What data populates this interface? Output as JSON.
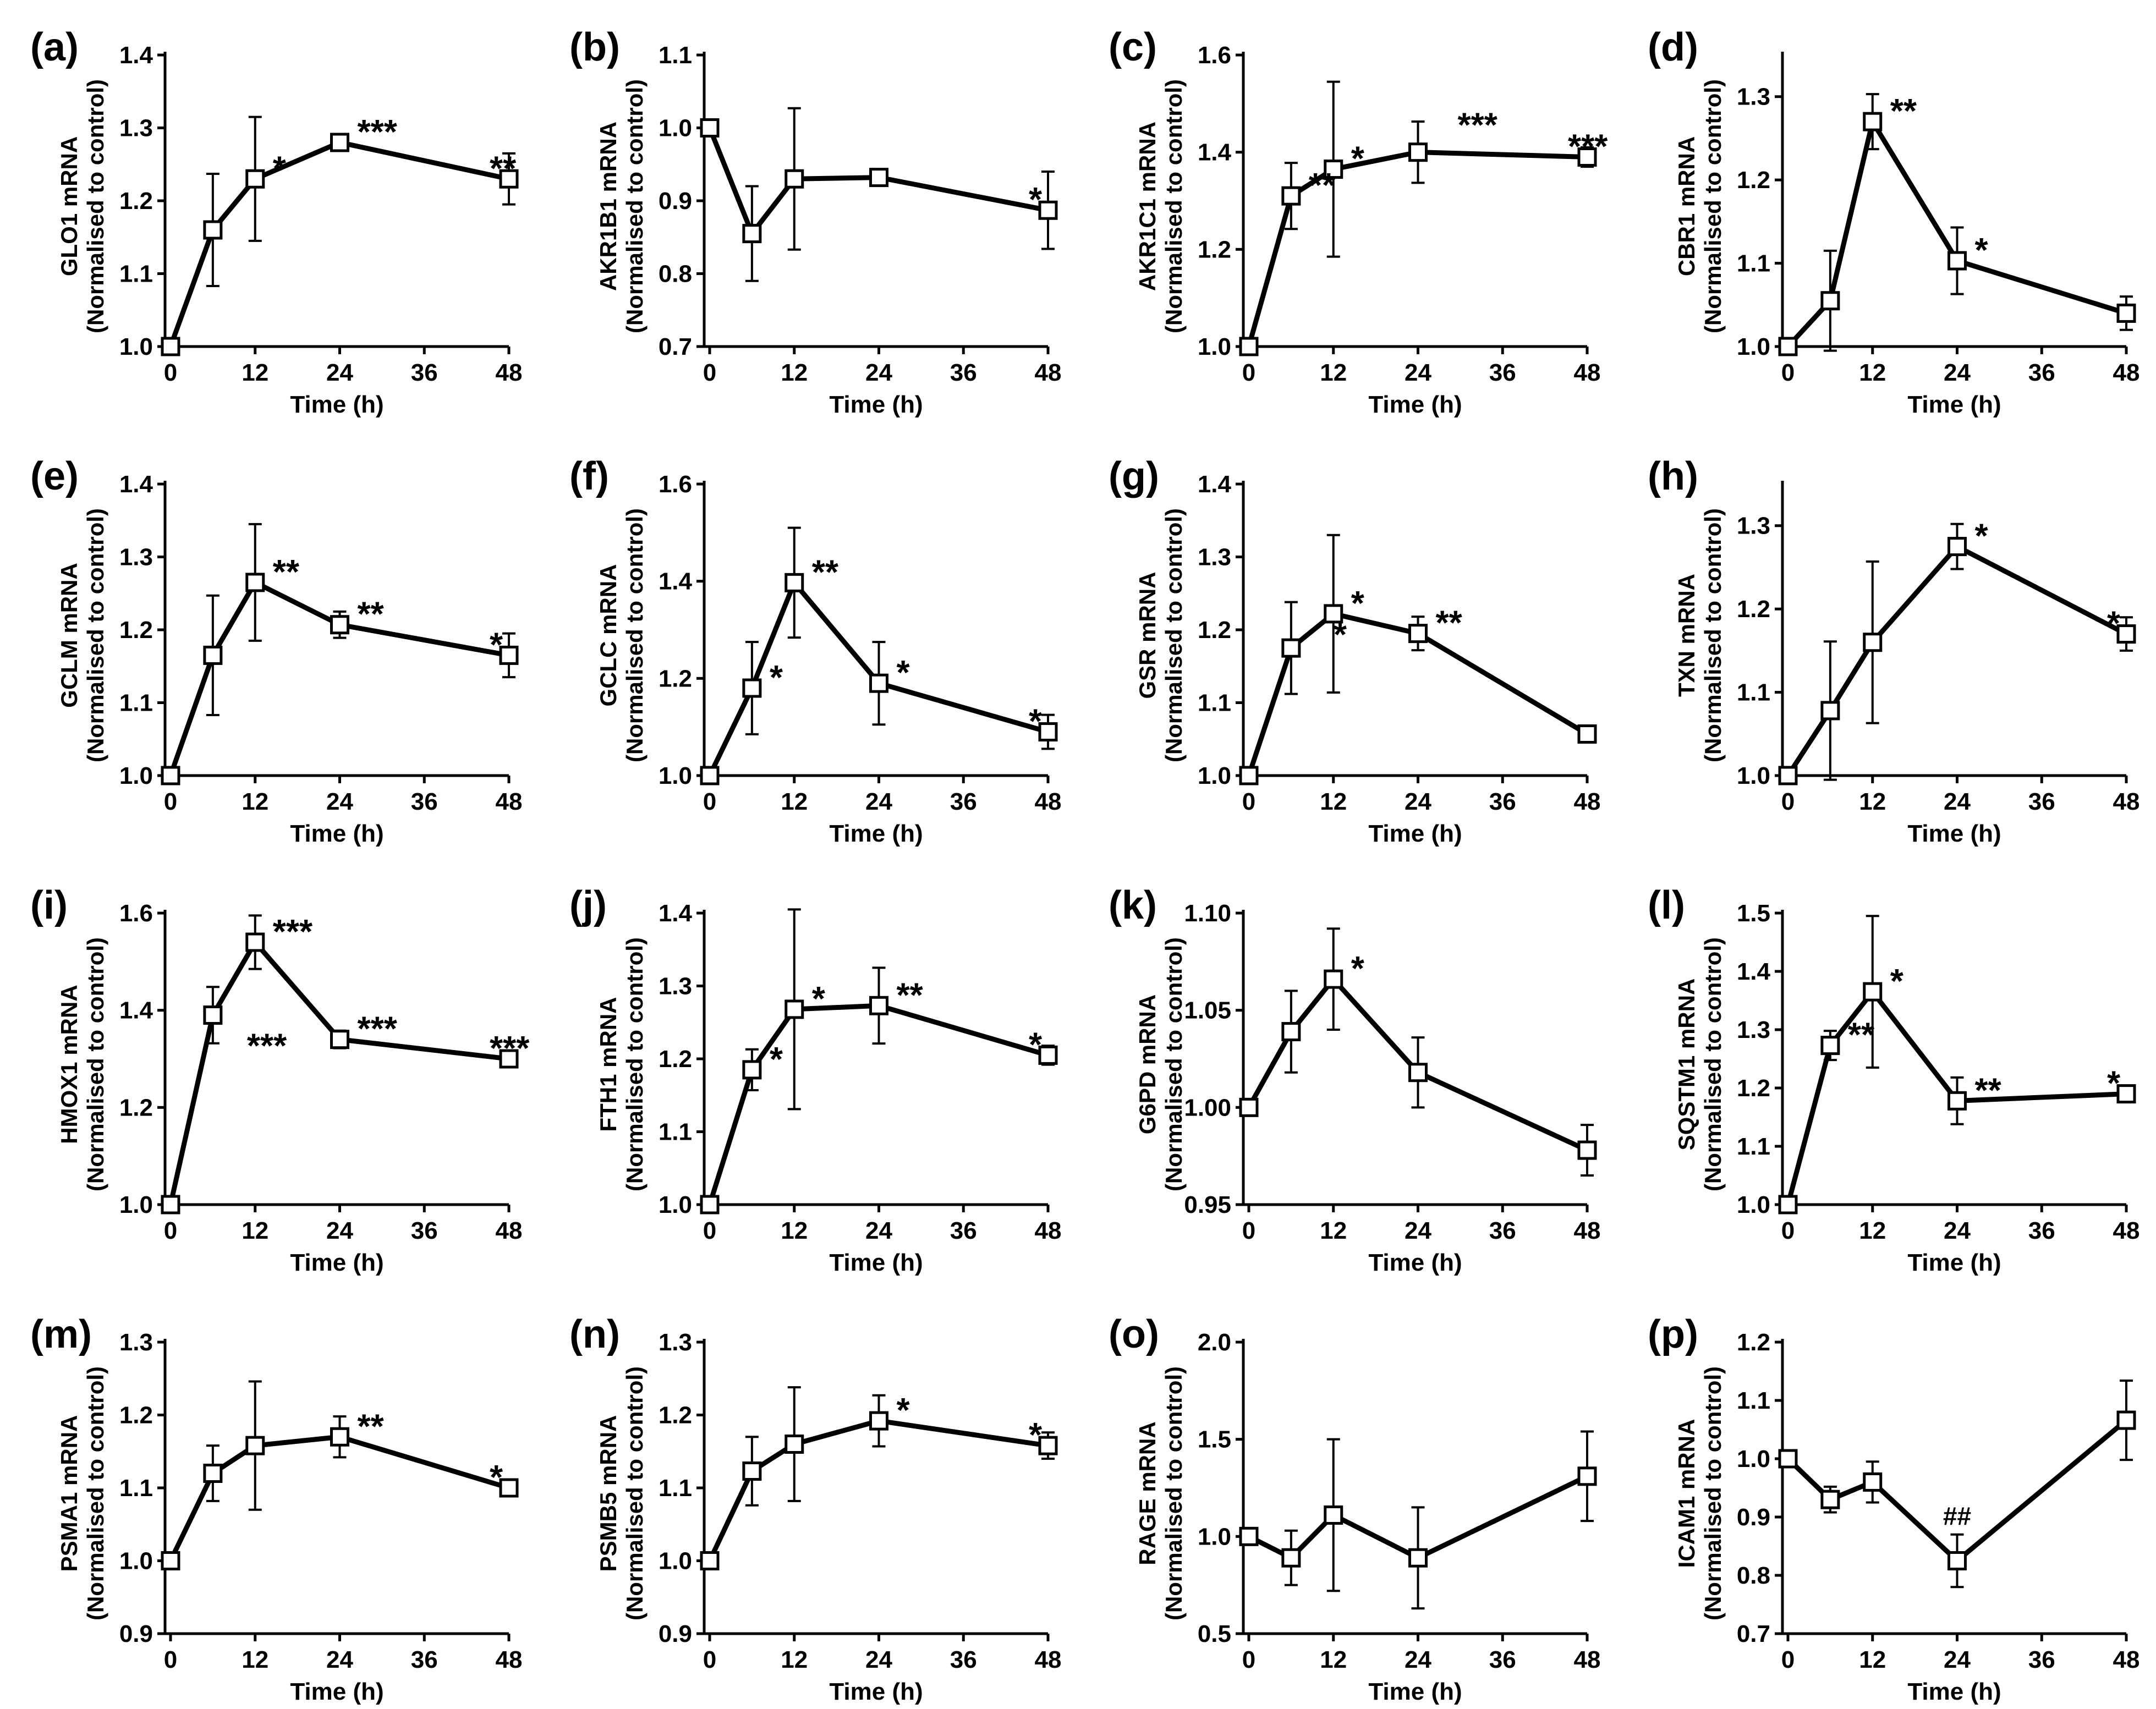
{
  "chart_data": [
    {
      "type": "line",
      "label": "(a)",
      "ylabel": "GLO1 mRNA",
      "ylabel2": "(Normalised to control)",
      "xlabel": "Time (h)",
      "ylim": [
        1.0,
        1.4
      ],
      "yticks": [
        "1.0",
        "1.1",
        "1.2",
        "1.3",
        "1.4"
      ],
      "xticks": [
        0,
        12,
        24,
        36,
        48
      ],
      "x": [
        0,
        6,
        12,
        24,
        48
      ],
      "y": [
        1.0,
        1.16,
        1.23,
        1.28,
        1.23
      ],
      "err": [
        0,
        0.077,
        0.085,
        0.008,
        0.035
      ],
      "sig": [
        "",
        "",
        "*",
        "***",
        "**"
      ]
    },
    {
      "type": "line",
      "label": "(b)",
      "ylabel": "AKR1B1 mRNA",
      "ylabel2": "(Normalised to control)",
      "xlabel": "Time (h)",
      "ylim": [
        0.7,
        1.1
      ],
      "yticks": [
        "0.7",
        "0.8",
        "0.9",
        "1.0",
        "1.1"
      ],
      "xticks": [
        0,
        12,
        24,
        36,
        48
      ],
      "x": [
        0,
        6,
        12,
        24,
        48
      ],
      "y": [
        1.0,
        0.855,
        0.93,
        0.932,
        0.887
      ],
      "err": [
        0,
        0.065,
        0.097,
        0.007,
        0.053
      ],
      "sig": [
        "",
        "",
        "",
        "",
        "*"
      ]
    },
    {
      "type": "line",
      "label": "(c)",
      "ylabel": "AKR1C1 mRNA",
      "ylabel2": "(Normalised to control)",
      "xlabel": "Time (h)",
      "ylim": [
        1.0,
        1.6
      ],
      "yticks": [
        "1.0",
        "1.2",
        "1.4",
        "1.6"
      ],
      "xticks": [
        0,
        12,
        24,
        36,
        48
      ],
      "x": [
        0,
        6,
        12,
        24,
        48
      ],
      "y": [
        1.0,
        1.31,
        1.365,
        1.4,
        1.39
      ],
      "err": [
        0,
        0.068,
        0.18,
        0.063,
        0.02
      ],
      "sig": [
        "",
        "**",
        "*",
        "***",
        "***"
      ]
    },
    {
      "type": "line",
      "label": "(d)",
      "ylabel": "CBR1 mRNA",
      "ylabel2": "(Normalised to control)",
      "xlabel": "Time (h)",
      "ylim": [
        1.0,
        1.35
      ],
      "yticks": [
        "1.0",
        "1.1",
        "1.2",
        "1.3"
      ],
      "xticks": [
        0,
        12,
        24,
        36,
        48
      ],
      "x": [
        0,
        6,
        12,
        24,
        48
      ],
      "y": [
        1.0,
        1.055,
        1.27,
        1.103,
        1.04
      ],
      "err": [
        0,
        0.06,
        0.033,
        0.04,
        0.02
      ],
      "sig": [
        "",
        "",
        "**",
        "*",
        ""
      ]
    },
    {
      "type": "line",
      "label": "(e)",
      "ylabel": "GCLM mRNA",
      "ylabel2": "(Normalised to control)",
      "xlabel": "Time (h)",
      "ylim": [
        1.0,
        1.4
      ],
      "yticks": [
        "1.0",
        "1.1",
        "1.2",
        "1.3",
        "1.4"
      ],
      "xticks": [
        0,
        12,
        24,
        36,
        48
      ],
      "x": [
        0,
        6,
        12,
        24,
        48
      ],
      "y": [
        1.0,
        1.165,
        1.265,
        1.207,
        1.165
      ],
      "err": [
        0,
        0.082,
        0.08,
        0.018,
        0.03
      ],
      "sig": [
        "",
        "",
        "**",
        "**",
        "*"
      ]
    },
    {
      "type": "line",
      "label": "(f)",
      "ylabel": "GCLC mRNA",
      "ylabel2": "(Normalised to control)",
      "xlabel": "Time (h)",
      "ylim": [
        1.0,
        1.6
      ],
      "yticks": [
        "1.0",
        "1.2",
        "1.4",
        "1.6"
      ],
      "xticks": [
        0,
        12,
        24,
        36,
        48
      ],
      "x": [
        0,
        6,
        12,
        24,
        48
      ],
      "y": [
        1.0,
        1.18,
        1.397,
        1.19,
        1.09
      ],
      "err": [
        0,
        0.095,
        0.113,
        0.085,
        0.035
      ],
      "sig": [
        "",
        "*",
        "**",
        "*",
        "*"
      ]
    },
    {
      "type": "line",
      "label": "(g)",
      "ylabel": "GSR mRNA",
      "ylabel2": "(Normalised to control)",
      "xlabel": "Time (h)",
      "ylim": [
        1.0,
        1.4
      ],
      "yticks": [
        "1.0",
        "1.1",
        "1.2",
        "1.3",
        "1.4"
      ],
      "xticks": [
        0,
        12,
        24,
        36,
        48
      ],
      "x": [
        0,
        6,
        12,
        24,
        48
      ],
      "y": [
        1.0,
        1.175,
        1.222,
        1.195,
        1.057
      ],
      "err": [
        0,
        0.063,
        0.108,
        0.023,
        0.005
      ],
      "sig": [
        "",
        "*",
        "*",
        "**",
        ""
      ]
    },
    {
      "type": "line",
      "label": "(h)",
      "ylabel": "TXN mRNA",
      "ylabel2": "(Normalised to control)",
      "xlabel": "Time (h)",
      "ylim": [
        1.0,
        1.35
      ],
      "yticks": [
        "1.0",
        "1.1",
        "1.2",
        "1.3"
      ],
      "xticks": [
        0,
        12,
        24,
        36,
        48
      ],
      "x": [
        0,
        6,
        12,
        24,
        48
      ],
      "y": [
        1.0,
        1.078,
        1.16,
        1.275,
        1.17
      ],
      "err": [
        0,
        0.083,
        0.097,
        0.027,
        0.02
      ],
      "sig": [
        "",
        "",
        "",
        "*",
        "*"
      ]
    },
    {
      "type": "line",
      "label": "(i)",
      "ylabel": "HMOX1 mRNA",
      "ylabel2": "(Normalised to control)",
      "xlabel": "Time (h)",
      "ylim": [
        1.0,
        1.6
      ],
      "yticks": [
        "1.0",
        "1.2",
        "1.4",
        "1.6"
      ],
      "xticks": [
        0,
        12,
        24,
        36,
        48
      ],
      "x": [
        0,
        6,
        12,
        24,
        48
      ],
      "y": [
        1.0,
        1.39,
        1.54,
        1.34,
        1.3
      ],
      "err": [
        0,
        0.058,
        0.055,
        0.018,
        0.01
      ],
      "sig": [
        "",
        "***",
        "***",
        "***",
        "***"
      ]
    },
    {
      "type": "line",
      "label": "(j)",
      "ylabel": "FTH1 mRNA",
      "ylabel2": "(Normalised to control)",
      "xlabel": "Time (h)",
      "ylim": [
        1.0,
        1.4
      ],
      "yticks": [
        "1.0",
        "1.1",
        "1.2",
        "1.3",
        "1.4"
      ],
      "xticks": [
        0,
        12,
        24,
        36,
        48
      ],
      "x": [
        0,
        6,
        12,
        24,
        48
      ],
      "y": [
        1.0,
        1.185,
        1.268,
        1.273,
        1.205
      ],
      "err": [
        0,
        0.028,
        0.137,
        0.052,
        0.013
      ],
      "sig": [
        "",
        "*",
        "*",
        "**",
        "*"
      ]
    },
    {
      "type": "line",
      "label": "(k)",
      "ylabel": "G6PD mRNA",
      "ylabel2": "(Normalised to control)",
      "xlabel": "Time (h)",
      "ylim": [
        0.95,
        1.1
      ],
      "yticks": [
        "0.95",
        "1.00",
        "1.05",
        "1.10"
      ],
      "xticks": [
        0,
        12,
        24,
        36,
        48
      ],
      "x": [
        0,
        6,
        12,
        24,
        48
      ],
      "y": [
        1.0,
        1.039,
        1.066,
        1.018,
        0.978
      ],
      "err": [
        0,
        0.021,
        0.026,
        0.018,
        0.013
      ],
      "sig": [
        "",
        "",
        "*",
        "",
        ""
      ]
    },
    {
      "type": "line",
      "label": "(l)",
      "ylabel": "SQSTM1 mRNA",
      "ylabel2": "(Normalised to control)",
      "xlabel": "Time (h)",
      "ylim": [
        1.0,
        1.5
      ],
      "yticks": [
        "1.0",
        "1.1",
        "1.2",
        "1.3",
        "1.4",
        "1.5"
      ],
      "xticks": [
        0,
        12,
        24,
        36,
        48
      ],
      "x": [
        0,
        6,
        12,
        24,
        48
      ],
      "y": [
        1.0,
        1.273,
        1.365,
        1.178,
        1.19
      ],
      "err": [
        0,
        0.025,
        0.13,
        0.04,
        0.008
      ],
      "sig": [
        "",
        "**",
        "*",
        "**",
        "*"
      ]
    },
    {
      "type": "line",
      "label": "(m)",
      "ylabel": "PSMA1  mRNA",
      "ylabel2": "(Normalised to control)",
      "xlabel": "Time (h)",
      "ylim": [
        0.9,
        1.3
      ],
      "yticks": [
        "0.9",
        "1.0",
        "1.1",
        "1.2",
        "1.3"
      ],
      "xticks": [
        0,
        12,
        24,
        36,
        48
      ],
      "x": [
        0,
        6,
        12,
        24,
        48
      ],
      "y": [
        1.0,
        1.12,
        1.158,
        1.17,
        1.1
      ],
      "err": [
        0,
        0.038,
        0.088,
        0.028,
        0.005
      ],
      "sig": [
        "",
        "",
        "",
        "**",
        "*"
      ]
    },
    {
      "type": "line",
      "label": "(n)",
      "ylabel": "PSMB5  mRNA",
      "ylabel2": "(Normalised to control)",
      "xlabel": "Time (h)",
      "ylim": [
        0.9,
        1.3
      ],
      "yticks": [
        "0.9",
        "1.0",
        "1.1",
        "1.2",
        "1.3"
      ],
      "xticks": [
        0,
        12,
        24,
        36,
        48
      ],
      "x": [
        0,
        6,
        12,
        24,
        48
      ],
      "y": [
        1.0,
        1.123,
        1.16,
        1.192,
        1.158
      ],
      "err": [
        0,
        0.047,
        0.078,
        0.035,
        0.018
      ],
      "sig": [
        "",
        "",
        "",
        "*",
        "*"
      ]
    },
    {
      "type": "line",
      "label": "(o)",
      "ylabel": "RAGE mRNA",
      "ylabel2": "(Normalised to control)",
      "xlabel": "Time (h)",
      "ylim": [
        0.5,
        2.0
      ],
      "yticks": [
        "0.5",
        "1.0",
        "1.5",
        "2.0"
      ],
      "xticks": [
        0,
        12,
        24,
        36,
        48
      ],
      "x": [
        0,
        6,
        12,
        24,
        48
      ],
      "y": [
        1.0,
        0.89,
        1.11,
        0.89,
        1.31
      ],
      "err": [
        0,
        0.14,
        0.39,
        0.26,
        0.23
      ],
      "sig": [
        "",
        "",
        "",
        "",
        ""
      ]
    },
    {
      "type": "line",
      "label": "(p)",
      "ylabel": "ICAM1 mRNA",
      "ylabel2": "(Normalised to control)",
      "xlabel": "Time (h)",
      "ylim": [
        0.7,
        1.2
      ],
      "yticks": [
        "0.7",
        "0.8",
        "0.9",
        "1.0",
        "1.1",
        "1.2"
      ],
      "xticks": [
        0,
        12,
        24,
        36,
        48
      ],
      "x": [
        0,
        6,
        12,
        24,
        48
      ],
      "y": [
        1.0,
        0.93,
        0.96,
        0.825,
        1.066
      ],
      "err": [
        0,
        0.022,
        0.035,
        0.045,
        0.068
      ],
      "sig": [
        "",
        "",
        "",
        "##",
        ""
      ]
    }
  ]
}
